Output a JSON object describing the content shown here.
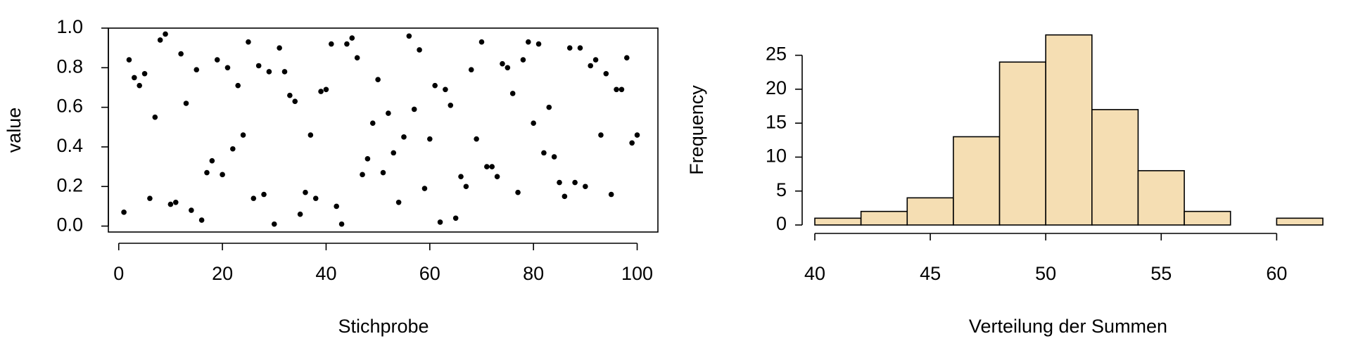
{
  "chart_data": [
    {
      "type": "scatter",
      "title": "",
      "xlabel": "Stichprobe",
      "ylabel": "value",
      "xlim": [
        -2,
        104
      ],
      "ylim": [
        -0.03,
        1.0
      ],
      "x_ticks": [
        0,
        20,
        40,
        60,
        80,
        100
      ],
      "y_ticks": [
        0.0,
        0.2,
        0.4,
        0.6,
        0.8,
        1.0
      ],
      "grid": false,
      "series": [
        {
          "x": [
            1,
            2,
            3,
            4,
            5,
            6,
            7,
            8,
            9,
            10,
            11,
            12,
            13,
            14,
            15,
            16,
            17,
            18,
            19,
            20,
            21,
            22,
            23,
            24,
            25,
            26,
            27,
            28,
            29,
            30,
            31,
            32,
            33,
            34,
            35,
            36,
            37,
            38,
            39,
            40,
            41,
            42,
            43,
            44,
            45,
            46,
            47,
            48,
            49,
            50,
            51,
            52,
            53,
            54,
            55,
            56,
            57,
            58,
            59,
            60,
            61,
            62,
            63,
            64,
            65,
            66,
            67,
            68,
            69,
            70,
            71,
            72,
            73,
            74,
            75,
            76,
            77,
            78,
            79,
            80,
            81,
            82,
            83,
            84,
            85,
            86,
            87,
            88,
            89,
            90,
            91,
            92,
            93,
            94,
            95,
            96,
            97,
            98,
            99,
            100
          ],
          "values": [
            0.07,
            0.84,
            0.75,
            0.71,
            0.77,
            0.14,
            0.55,
            0.94,
            0.97,
            0.11,
            0.12,
            0.87,
            0.62,
            0.08,
            0.79,
            0.03,
            0.27,
            0.33,
            0.84,
            0.26,
            0.8,
            0.39,
            0.71,
            0.46,
            0.93,
            0.14,
            0.81,
            0.16,
            0.78,
            0.01,
            0.9,
            0.78,
            0.66,
            0.63,
            0.06,
            0.17,
            0.46,
            0.14,
            0.68,
            0.69,
            0.92,
            0.1,
            0.01,
            0.92,
            0.95,
            0.85,
            0.26,
            0.34,
            0.52,
            0.74,
            0.27,
            0.57,
            0.37,
            0.12,
            0.45,
            0.96,
            0.59,
            0.89,
            0.19,
            0.44,
            0.71,
            0.02,
            0.69,
            0.61,
            0.04,
            0.25,
            0.2,
            0.79,
            0.44,
            0.93,
            0.3,
            0.3,
            0.25,
            0.82,
            0.8,
            0.67,
            0.17,
            0.84,
            0.93,
            0.52,
            0.92,
            0.37,
            0.6,
            0.35,
            0.22,
            0.15,
            0.9,
            0.22,
            0.9,
            0.2,
            0.81,
            0.84,
            0.46,
            0.77,
            0.16,
            0.69,
            0.69,
            0.85,
            0.42,
            0.46
          ]
        }
      ]
    },
    {
      "type": "bar",
      "title": "",
      "xlabel": "Verteilung der Summen",
      "ylabel": "Frequency",
      "xlim": [
        40,
        62
      ],
      "ylim": [
        0,
        29
      ],
      "x_ticks": [
        40,
        45,
        50,
        55,
        60
      ],
      "y_ticks": [
        0,
        5,
        10,
        15,
        20,
        25
      ],
      "bin_edges": [
        40,
        42,
        44,
        46,
        48,
        50,
        52,
        54,
        56,
        58,
        60,
        62
      ],
      "values": [
        1,
        2,
        4,
        13,
        24,
        28,
        17,
        8,
        2,
        0,
        1
      ],
      "bar_color": "#f5deb3",
      "edge_color": "#000000",
      "grid": false
    }
  ]
}
